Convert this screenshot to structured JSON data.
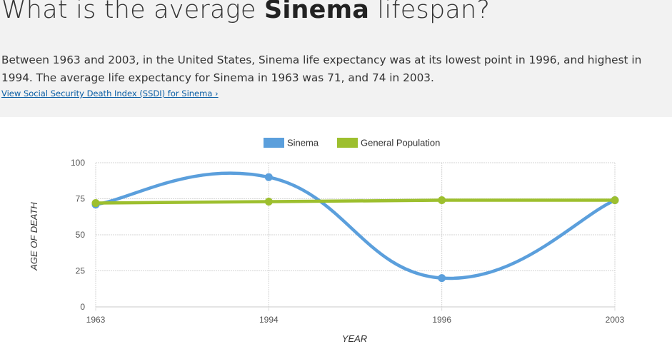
{
  "header": {
    "title_prefix": "What is the average ",
    "title_name": "Sinema",
    "title_suffix": " lifespan?"
  },
  "intro": {
    "text": "Between 1963 and 2003, in the United States, Sinema life expectancy was at its lowest point in 1996, and highest in 1994. The average life expectancy for Sinema in 1963 was 71, and 74 in 2003.",
    "link_label": "View Social Security Death Index (SSDI) for Sinema ›"
  },
  "colors": {
    "sinema": "#5b9fdc",
    "general_population": "#9dbf2e"
  },
  "chart_data": {
    "type": "line",
    "categories": [
      "1963",
      "1994",
      "1996",
      "2003"
    ],
    "series": [
      {
        "name": "Sinema",
        "values": [
          71,
          90,
          20,
          74
        ]
      },
      {
        "name": "General Population",
        "values": [
          72,
          73,
          74,
          74
        ]
      }
    ],
    "xlabel": "YEAR",
    "ylabel": "AGE OF DEATH",
    "ylim": [
      0,
      100
    ],
    "yticks": [
      0,
      25,
      50,
      75,
      100
    ],
    "grid": true,
    "legend_position": "top-center",
    "smooth": true
  }
}
